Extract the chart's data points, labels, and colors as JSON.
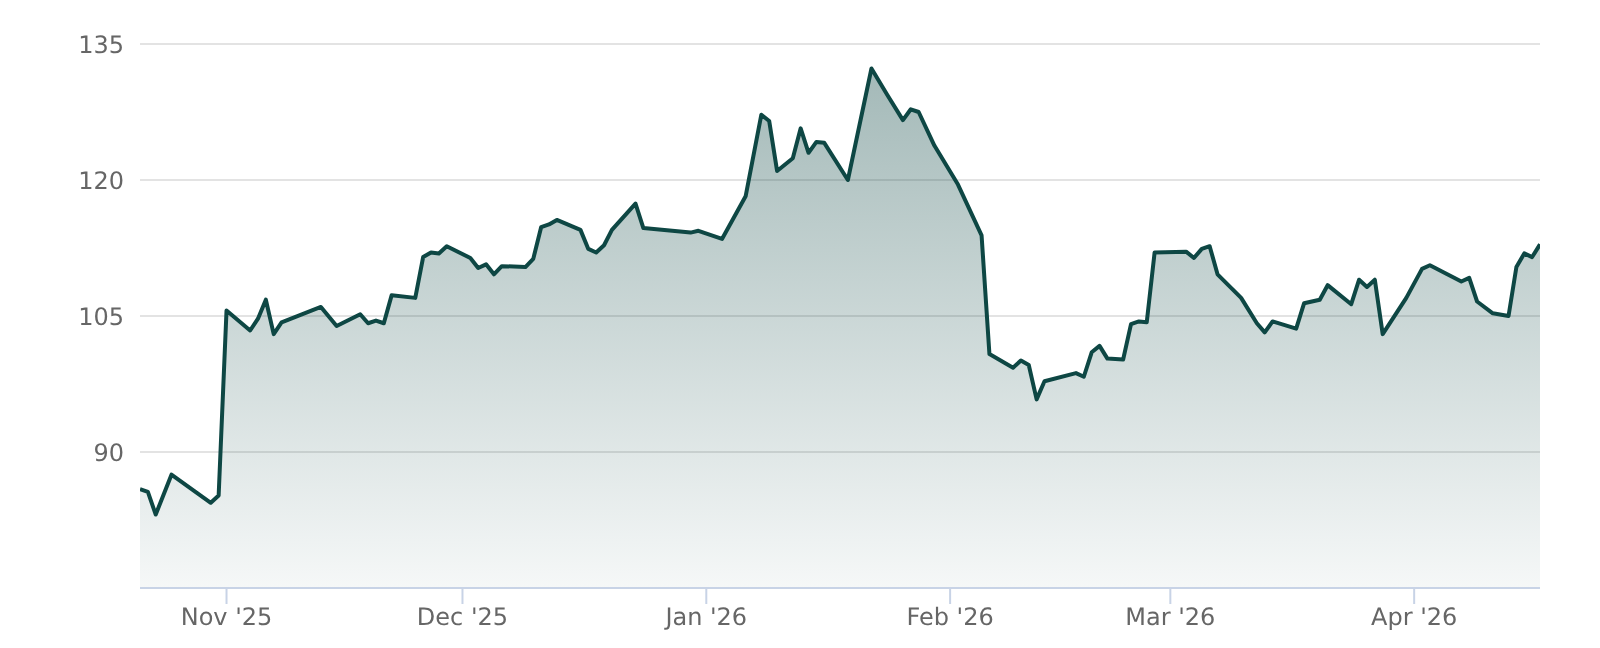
{
  "chart_data": {
    "type": "area",
    "color": "#0e4744",
    "grid": "y",
    "ylim": [
      75,
      135
    ],
    "yticks": [
      90,
      105,
      120,
      135
    ],
    "xlim": [
      "2025-10-21",
      "2026-04-17"
    ],
    "xticks": [
      {
        "value": "2025-11-01",
        "label": "Nov '25"
      },
      {
        "value": "2025-12-01",
        "label": "Dec '25"
      },
      {
        "value": "2026-01-01",
        "label": "Jan '26"
      },
      {
        "value": "2026-02-01",
        "label": "Feb '26"
      },
      {
        "value": "2026-03-01",
        "label": "Mar '26"
      },
      {
        "value": "2026-04-01",
        "label": "Apr '26"
      }
    ],
    "x": [
      "2025-10-21",
      "2025-10-22",
      "2025-10-23",
      "2025-10-25",
      "2025-10-30",
      "2025-10-31",
      "2025-11-01",
      "2025-11-04",
      "2025-11-05",
      "2025-11-06",
      "2025-11-07",
      "2025-11-08",
      "2025-11-13",
      "2025-11-15",
      "2025-11-18",
      "2025-11-19",
      "2025-11-20",
      "2025-11-21",
      "2025-11-22",
      "2025-11-25",
      "2025-11-26",
      "2025-11-27",
      "2025-11-28",
      "2025-11-29",
      "2025-12-02",
      "2025-12-03",
      "2025-12-04",
      "2025-12-05",
      "2025-12-06",
      "2025-12-09",
      "2025-12-10",
      "2025-12-11",
      "2025-12-12",
      "2025-12-13",
      "2025-12-16",
      "2025-12-17",
      "2025-12-18",
      "2025-12-19",
      "2025-12-20",
      "2025-12-23",
      "2025-12-24",
      "2025-12-30",
      "2025-12-31",
      "2026-01-03",
      "2026-01-06",
      "2026-01-08",
      "2026-01-09",
      "2026-01-10",
      "2026-01-12",
      "2026-01-13",
      "2026-01-14",
      "2026-01-15",
      "2026-01-16",
      "2026-01-19",
      "2026-01-22",
      "2026-01-24",
      "2026-01-26",
      "2026-01-27",
      "2026-01-28",
      "2026-01-30",
      "2026-02-02",
      "2026-02-05",
      "2026-02-06",
      "2026-02-09",
      "2026-02-10",
      "2026-02-11",
      "2026-02-12",
      "2026-02-13",
      "2026-02-17",
      "2026-02-18",
      "2026-02-19",
      "2026-02-20",
      "2026-02-21",
      "2026-02-23",
      "2026-02-24",
      "2026-02-25",
      "2026-02-26",
      "2026-02-27",
      "2026-03-03",
      "2026-03-04",
      "2026-03-05",
      "2026-03-06",
      "2026-03-07",
      "2026-03-10",
      "2026-03-12",
      "2026-03-13",
      "2026-03-14",
      "2026-03-17",
      "2026-03-18",
      "2026-03-20",
      "2026-03-21",
      "2026-03-24",
      "2026-03-25",
      "2026-03-26",
      "2026-03-27",
      "2026-03-28",
      "2026-03-31",
      "2026-04-02",
      "2026-04-03",
      "2026-04-07",
      "2026-04-08",
      "2026-04-09",
      "2026-04-11",
      "2026-04-13",
      "2026-04-14",
      "2026-04-15",
      "2026-04-16",
      "2026-04-17"
    ],
    "values": [
      85.9,
      85.6,
      83.1,
      87.5,
      84.4,
      85.2,
      105.6,
      103.4,
      104.7,
      106.8,
      103.0,
      104.3,
      106.0,
      103.9,
      105.2,
      104.2,
      104.5,
      104.2,
      107.3,
      107.0,
      111.5,
      112.0,
      111.9,
      112.7,
      111.4,
      110.3,
      110.7,
      109.6,
      110.5,
      110.4,
      111.3,
      114.8,
      115.1,
      115.6,
      114.5,
      112.4,
      112.0,
      112.8,
      114.5,
      117.4,
      114.7,
      114.2,
      114.4,
      113.5,
      118.2,
      127.2,
      126.5,
      121.0,
      122.4,
      125.7,
      123.0,
      124.2,
      124.1,
      120.0,
      132.3,
      129.4,
      126.6,
      127.8,
      127.5,
      123.8,
      119.5,
      113.9,
      100.8,
      99.3,
      100.1,
      99.6,
      95.8,
      97.8,
      98.7,
      98.3,
      101.0,
      101.7,
      100.3,
      100.2,
      104.1,
      104.4,
      104.3,
      112.0,
      112.1,
      111.4,
      112.4,
      112.7,
      109.6,
      107.0,
      104.2,
      103.2,
      104.4,
      103.6,
      106.4,
      106.8,
      108.4,
      106.3,
      109.0,
      108.2,
      109.0,
      103.0,
      107.0,
      110.2,
      110.6,
      108.8,
      109.2,
      106.6,
      105.3,
      105.0,
      110.4,
      111.9,
      111.5,
      112.9
    ]
  }
}
